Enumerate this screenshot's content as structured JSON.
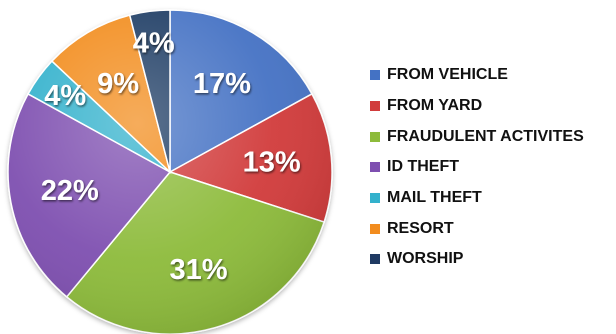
{
  "chart_data": {
    "type": "pie",
    "title": "",
    "categories": [
      "FROM VEHICLE",
      "FROM YARD",
      "FRAUDULENT ACTIVITES",
      "ID THEFT",
      "MAIL THEFT",
      "RESORT",
      "WORSHIP"
    ],
    "values": [
      17,
      13,
      31,
      22,
      4,
      9,
      4
    ],
    "value_labels": [
      "17%",
      "13%",
      "31%",
      "22%",
      "4%",
      "9%",
      "4%"
    ],
    "colors": [
      "#4472C4",
      "#D13B3B",
      "#8DBB3B",
      "#7E4FB0",
      "#33B1CC",
      "#F28C1E",
      "#1F3A63"
    ],
    "start_angle_deg": 0,
    "direction": "clockwise",
    "legend_position": "right"
  }
}
